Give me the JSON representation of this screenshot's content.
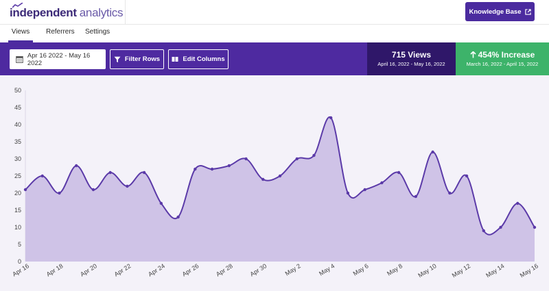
{
  "header": {
    "logo_strong": "independent",
    "logo_light": "analytics",
    "knowledge_base_label": "Knowledge Base"
  },
  "tabs": [
    {
      "label": "Views",
      "active": true
    },
    {
      "label": "Referrers",
      "active": false
    },
    {
      "label": "Settings",
      "active": false
    }
  ],
  "toolbar": {
    "date_range": "Apr 16 2022 - May 16 2022",
    "filter_label": "Filter Rows",
    "columns_label": "Edit Columns"
  },
  "stats": {
    "views_value": "715 Views",
    "views_range": "April 16, 2022 - May 16, 2022",
    "increase_value": "454% Increase",
    "increase_range": "March 16, 2022 - April 15, 2022"
  },
  "colors": {
    "accent": "#4e2aa0",
    "dark_stat": "#2f1769",
    "success": "#3db36a",
    "line": "#5b3aa8",
    "fill": "#cfc3e7"
  },
  "chart_data": {
    "type": "area",
    "x": [
      "Apr 16",
      "Apr 17",
      "Apr 18",
      "Apr 19",
      "Apr 20",
      "Apr 21",
      "Apr 22",
      "Apr 23",
      "Apr 24",
      "Apr 25",
      "Apr 26",
      "Apr 27",
      "Apr 28",
      "Apr 29",
      "Apr 30",
      "May 1",
      "May 2",
      "May 3",
      "May 4",
      "May 5",
      "May 6",
      "May 7",
      "May 8",
      "May 9",
      "May 10",
      "May 11",
      "May 12",
      "May 13",
      "May 14",
      "May 15",
      "May 16"
    ],
    "values": [
      21,
      25,
      20,
      28,
      21,
      26,
      22,
      26,
      17,
      13,
      27,
      27,
      28,
      30,
      24,
      25,
      30,
      31,
      42,
      20,
      21,
      23,
      26,
      19,
      32,
      20,
      25,
      9,
      10,
      17,
      10
    ],
    "x_tick_labels": [
      "Apr 16",
      "Apr 18",
      "Apr 20",
      "Apr 22",
      "Apr 24",
      "Apr 26",
      "Apr 28",
      "Apr 30",
      "May 2",
      "May 4",
      "May 6",
      "May 8",
      "May 10",
      "May 12",
      "May 14",
      "May 16"
    ],
    "y_ticks": [
      0,
      5,
      10,
      15,
      20,
      25,
      30,
      35,
      40,
      45,
      50
    ],
    "ylim": [
      0,
      50
    ],
    "grid": false,
    "legend": "none"
  }
}
